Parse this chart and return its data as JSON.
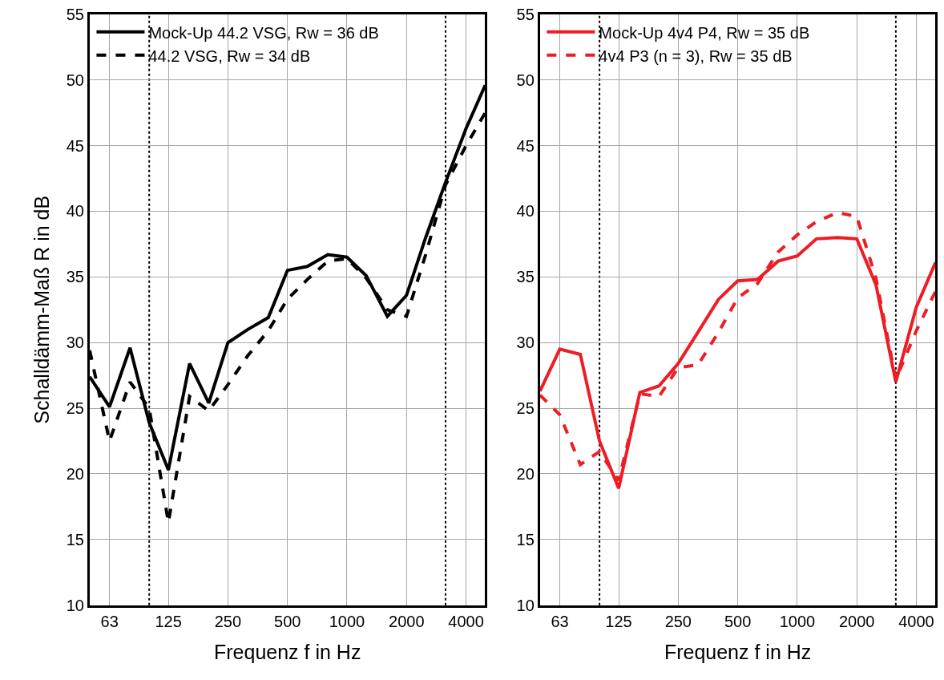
{
  "chart_data": [
    {
      "type": "line",
      "xlabel": "Frequenz f in Hz",
      "ylabel": "Schalldämm-Maß R in dB",
      "x": [
        50,
        63,
        80,
        100,
        125,
        160,
        200,
        250,
        315,
        400,
        500,
        630,
        800,
        1000,
        1250,
        1600,
        2000,
        2500,
        3150,
        4000,
        5000
      ],
      "series": [
        {
          "name": "Mock-Up 44.2 VSG, Rw = 36 dB",
          "color": "#000000",
          "line_style": "solid",
          "values": [
            27.4,
            25.1,
            29.6,
            23.9,
            20.3,
            28.4,
            25.4,
            30.0,
            31.0,
            31.9,
            35.5,
            35.8,
            36.7,
            36.5,
            35.1,
            32.0,
            33.6,
            38.0,
            42.2,
            46.3,
            49.6
          ]
        },
        {
          "name": "44.2 VSG, Rw = 34 dB",
          "color": "#000000",
          "line_style": "dashed",
          "values": [
            29.4,
            22.5,
            27.0,
            25.0,
            16.3,
            25.9,
            24.8,
            26.8,
            29.0,
            30.9,
            33.3,
            34.8,
            36.2,
            36.4,
            34.9,
            32.5,
            32.0,
            36.7,
            42.0,
            45.0,
            47.5
          ]
        }
      ],
      "xlim": [
        50,
        5000
      ],
      "xticks": [
        63,
        125,
        250,
        500,
        1000,
        2000,
        4000
      ],
      "log": "x",
      "ylim": [
        10,
        55
      ],
      "yticks": [
        10,
        15,
        20,
        25,
        30,
        35,
        40,
        45,
        50,
        55
      ],
      "ref_lines": [
        {
          "axis": "x",
          "value": 100,
          "color": "#000000",
          "line_style": "dotted"
        },
        {
          "axis": "x",
          "value": 3150,
          "color": "#000000",
          "line_style": "dotted"
        }
      ],
      "grid": true,
      "legend": "top left",
      "marker": "none"
    },
    {
      "type": "line",
      "xlabel": "Frequenz f in Hz",
      "x": [
        50,
        63,
        80,
        100,
        125,
        160,
        200,
        250,
        315,
        400,
        500,
        630,
        800,
        1000,
        1250,
        1600,
        2000,
        2500,
        3150,
        4000,
        5000
      ],
      "series": [
        {
          "name": "Mock-Up 4v4 P4, Rw = 35 dB",
          "color": "#ee1c25",
          "line_style": "solid",
          "values": [
            26.3,
            29.5,
            29.1,
            22.5,
            18.9,
            26.2,
            26.7,
            28.4,
            30.8,
            33.3,
            34.7,
            34.8,
            36.2,
            36.6,
            37.9,
            38.0,
            37.9,
            34.4,
            27.0,
            32.7,
            36.1
          ]
        },
        {
          "name": "4v4 P3 (n = 3), Rw = 35 dB",
          "color": "#ee1c25",
          "line_style": "dashed",
          "values": [
            26.0,
            24.5,
            20.7,
            21.7,
            19.5,
            26.1,
            25.9,
            28.1,
            28.3,
            30.8,
            33.4,
            34.5,
            36.9,
            38.2,
            39.2,
            39.9,
            39.6,
            34.9,
            27.2,
            30.9,
            33.9
          ]
        }
      ],
      "xlim": [
        50,
        5000
      ],
      "xticks": [
        63,
        125,
        250,
        500,
        1000,
        2000,
        4000
      ],
      "log": "x",
      "ylim": [
        10,
        55
      ],
      "yticks": [
        10,
        15,
        20,
        25,
        30,
        35,
        40,
        45,
        50,
        55
      ],
      "ref_lines": [
        {
          "axis": "x",
          "value": 100,
          "color": "#000000",
          "line_style": "dotted"
        },
        {
          "axis": "x",
          "value": 3150,
          "color": "#000000",
          "line_style": "dotted"
        }
      ],
      "grid": true,
      "legend": "top left",
      "marker": "none"
    }
  ]
}
